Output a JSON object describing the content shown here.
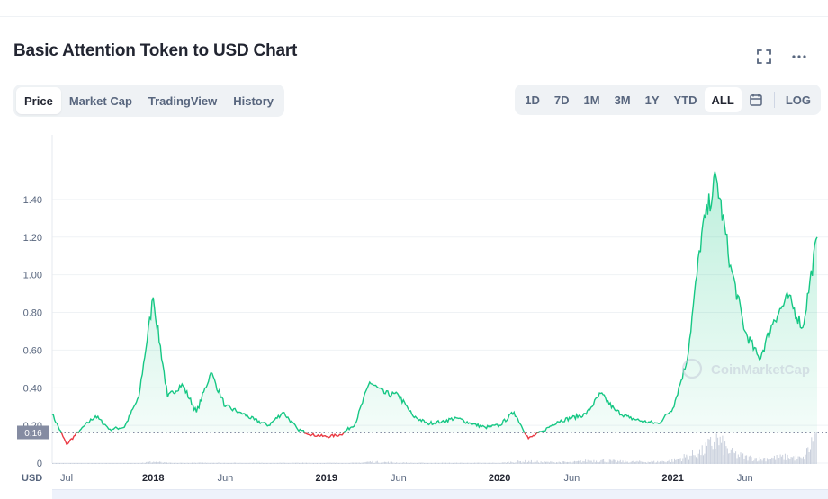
{
  "header": {
    "title": "Basic Attention Token to USD Chart"
  },
  "icons": {
    "fullscreen": "fullscreen-icon",
    "more": "more-horizontal-icon",
    "calendar": "calendar-icon"
  },
  "tabs": [
    {
      "label": "Price",
      "active": true
    },
    {
      "label": "Market Cap",
      "active": false
    },
    {
      "label": "TradingView",
      "active": false
    },
    {
      "label": "History",
      "active": false
    }
  ],
  "ranges": [
    {
      "label": "1D",
      "active": false
    },
    {
      "label": "7D",
      "active": false
    },
    {
      "label": "1M",
      "active": false
    },
    {
      "label": "3M",
      "active": false
    },
    {
      "label": "1Y",
      "active": false
    },
    {
      "label": "YTD",
      "active": false
    },
    {
      "label": "ALL",
      "active": true
    }
  ],
  "log_label": "LOG",
  "colors": {
    "up": "#16c784",
    "down": "#ea3943",
    "volume": "#c9cfdc",
    "grid": "#eff2f5",
    "baseline_tag": "#858ca2"
  },
  "chart_data": {
    "type": "line",
    "y_unit_label": "USD",
    "ylim": [
      0,
      1.6
    ],
    "yticks": [
      "0",
      "0.20",
      "0.40",
      "0.60",
      "0.80",
      "1.00",
      "1.20",
      "1.40"
    ],
    "y_tick_values": [
      0,
      0.2,
      0.4,
      0.6,
      0.8,
      1.0,
      1.2,
      1.4
    ],
    "x_ticks": [
      {
        "label": "Jul",
        "date": "2017-07"
      },
      {
        "label": "2018",
        "date": "2018-01"
      },
      {
        "label": "Jun",
        "date": "2018-06"
      },
      {
        "label": "2019",
        "date": "2019-01"
      },
      {
        "label": "Jun",
        "date": "2019-06"
      },
      {
        "label": "2020",
        "date": "2020-01"
      },
      {
        "label": "Jun",
        "date": "2020-06"
      },
      {
        "label": "2021",
        "date": "2021-01"
      },
      {
        "label": "Jun",
        "date": "2021-06"
      }
    ],
    "x_range": [
      "2017-06",
      "2021-11"
    ],
    "baseline_value": 0.16,
    "baseline_label": "0.16",
    "watermark": "CoinMarketCap",
    "series": [
      {
        "x": [
          "2017-06",
          "2017-07",
          "2017-08",
          "2017-09",
          "2017-10",
          "2017-11",
          "2017-12",
          "2018-01",
          "2018-02",
          "2018-03",
          "2018-04",
          "2018-05",
          "2018-06",
          "2018-07",
          "2018-08",
          "2018-09",
          "2018-10",
          "2018-11",
          "2018-12",
          "2019-01",
          "2019-02",
          "2019-03",
          "2019-04",
          "2019-05",
          "2019-06",
          "2019-07",
          "2019-08",
          "2019-09",
          "2019-10",
          "2019-11",
          "2019-12",
          "2020-01",
          "2020-02",
          "2020-03",
          "2020-04",
          "2020-05",
          "2020-06",
          "2020-07",
          "2020-08",
          "2020-09",
          "2020-10",
          "2020-11",
          "2020-12",
          "2021-01",
          "2021-02",
          "2021-03",
          "2021-04",
          "2021-05",
          "2021-06",
          "2021-07",
          "2021-08",
          "2021-09",
          "2021-10",
          "2021-11"
        ],
        "values": [
          0.26,
          0.1,
          0.18,
          0.25,
          0.18,
          0.19,
          0.35,
          0.88,
          0.35,
          0.42,
          0.27,
          0.48,
          0.3,
          0.27,
          0.23,
          0.2,
          0.27,
          0.18,
          0.15,
          0.14,
          0.15,
          0.21,
          0.43,
          0.37,
          0.36,
          0.25,
          0.21,
          0.22,
          0.24,
          0.21,
          0.19,
          0.2,
          0.27,
          0.13,
          0.17,
          0.22,
          0.24,
          0.26,
          0.37,
          0.28,
          0.24,
          0.22,
          0.21,
          0.29,
          0.55,
          1.22,
          1.52,
          1.05,
          0.7,
          0.55,
          0.76,
          0.88,
          0.72,
          1.2
        ],
        "volume": [
          0.01,
          0.01,
          0.01,
          0.01,
          0.01,
          0.01,
          0.02,
          0.05,
          0.02,
          0.02,
          0.02,
          0.03,
          0.02,
          0.02,
          0.02,
          0.02,
          0.02,
          0.02,
          0.02,
          0.02,
          0.02,
          0.02,
          0.05,
          0.04,
          0.03,
          0.02,
          0.02,
          0.02,
          0.02,
          0.02,
          0.02,
          0.02,
          0.05,
          0.06,
          0.04,
          0.04,
          0.04,
          0.07,
          0.08,
          0.06,
          0.05,
          0.05,
          0.05,
          0.08,
          0.18,
          0.28,
          0.55,
          0.25,
          0.15,
          0.12,
          0.14,
          0.16,
          0.12,
          0.7
        ]
      }
    ],
    "grid": true
  }
}
